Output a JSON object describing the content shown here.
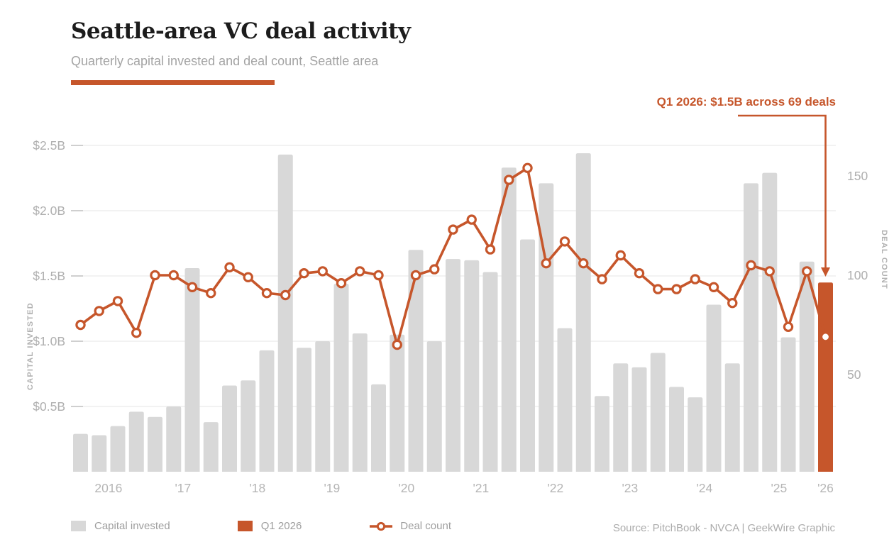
{
  "header": {
    "title": "Seattle-area VC deal activity",
    "subtitle": "Quarterly capital invested and deal count, Seattle area"
  },
  "annotation": {
    "text": "Q1 2026: $1.5B across 69 deals"
  },
  "legend": {
    "capital_label": "Capital invested",
    "highlight_label": "Q1 2026",
    "line_label": "Deal count"
  },
  "source": "Source: PitchBook - NVCA | GeekWire Graphic",
  "colors": {
    "accent": "#c6562b",
    "bar": "#d8d8d8",
    "grid": "#ebebeb",
    "tick": "#cfcfcf",
    "axis_text": "#afafaf",
    "x_text": "#b5b5b5",
    "marker_fill": "#ffffff"
  },
  "chart_data": {
    "type": "bar",
    "title": "Seattle-area VC deal activity",
    "subtitle": "Quarterly capital invested and deal count, Seattle area",
    "categories": [
      "Q1 2016",
      "Q2 2016",
      "Q3 2016",
      "Q4 2016",
      "Q1 2017",
      "Q2 2017",
      "Q3 2017",
      "Q4 2017",
      "Q1 2018",
      "Q2 2018",
      "Q3 2018",
      "Q4 2018",
      "Q1 2019",
      "Q2 2019",
      "Q3 2019",
      "Q4 2019",
      "Q1 2020",
      "Q2 2020",
      "Q3 2020",
      "Q4 2020",
      "Q1 2021",
      "Q2 2021",
      "Q3 2021",
      "Q4 2021",
      "Q1 2022",
      "Q2 2022",
      "Q3 2022",
      "Q4 2022",
      "Q1 2023",
      "Q2 2023",
      "Q3 2023",
      "Q4 2023",
      "Q1 2024",
      "Q2 2024",
      "Q3 2024",
      "Q4 2024",
      "Q1 2025",
      "Q2 2025",
      "Q3 2025",
      "Q4 2025",
      "Q1 2026"
    ],
    "series": [
      {
        "name": "Capital invested ($B)",
        "kind": "bar",
        "axis": "left",
        "values": [
          0.29,
          0.28,
          0.35,
          0.46,
          0.42,
          0.5,
          1.56,
          0.38,
          0.66,
          0.7,
          0.93,
          2.43,
          0.95,
          1.0,
          1.44,
          1.06,
          0.67,
          1.05,
          1.7,
          1.0,
          1.63,
          1.62,
          1.53,
          2.33,
          1.78,
          2.21,
          1.1,
          2.44,
          0.58,
          0.83,
          0.8,
          0.91,
          0.65,
          0.57,
          1.28,
          0.83,
          2.21,
          2.29,
          1.03,
          1.61,
          1.45
        ]
      },
      {
        "name": "Deal count",
        "kind": "line",
        "axis": "right",
        "values": [
          75,
          82,
          87,
          71,
          100,
          100,
          94,
          91,
          104,
          99,
          91,
          90,
          101,
          102,
          96,
          102,
          100,
          65,
          100,
          103,
          123,
          128,
          113,
          148,
          154,
          106,
          117,
          106,
          98,
          110,
          101,
          93,
          93,
          98,
          94,
          86,
          105,
          102,
          74,
          102,
          69
        ]
      }
    ],
    "highlight_index": 40,
    "highlight_note": "Q1 2026: $1.5B across 69 deals",
    "ylabel_left": "CAPITAL INVESTED",
    "ylabel_right": "DEAL COUNT",
    "ylim_left": [
      0,
      2.5
    ],
    "ylim_right": [
      0,
      165
    ],
    "grid": true,
    "legend_position": "bottom",
    "yticks_left": [
      {
        "label": "$0.5B",
        "value": 0.5
      },
      {
        "label": "$1.0B",
        "value": 1.0
      },
      {
        "label": "$1.5B",
        "value": 1.5
      },
      {
        "label": "$2.0B",
        "value": 2.0
      },
      {
        "label": "$2.5B",
        "value": 2.5
      }
    ],
    "yticks_right": [
      {
        "label": "50",
        "value": 50
      },
      {
        "label": "100",
        "value": 100
      },
      {
        "label": "150",
        "value": 150
      }
    ],
    "xticks": [
      {
        "label": "2016",
        "index": 1.5
      },
      {
        "label": "'17",
        "index": 5.5
      },
      {
        "label": "'18",
        "index": 9.5
      },
      {
        "label": "'19",
        "index": 13.5
      },
      {
        "label": "'20",
        "index": 17.5
      },
      {
        "label": "'21",
        "index": 21.5
      },
      {
        "label": "'22",
        "index": 25.5
      },
      {
        "label": "'23",
        "index": 29.5
      },
      {
        "label": "'24",
        "index": 33.5
      },
      {
        "label": "'25",
        "index": 37.5
      },
      {
        "label": "'26",
        "index": 40
      }
    ]
  }
}
